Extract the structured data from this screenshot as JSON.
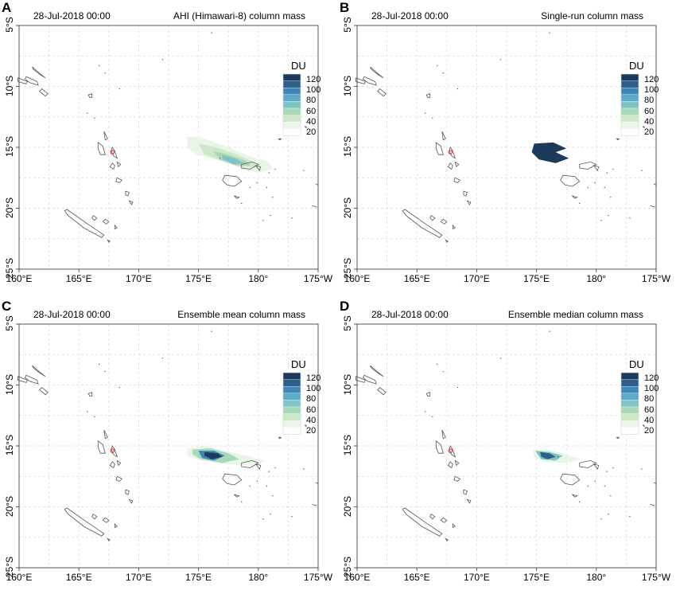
{
  "colorbar": {
    "unit": "DU",
    "ticks": [
      "120",
      "100",
      "80",
      "60",
      "40",
      "20"
    ],
    "colors": [
      "#1b3a5c",
      "#2e5f8a",
      "#3d86b5",
      "#5aaac8",
      "#7fc4c4",
      "#a7d8b8",
      "#cde9c7",
      "#e9f5e6",
      "#ffffff"
    ]
  },
  "map": {
    "x_ticks": [
      "160°E",
      "165°E",
      "170°E",
      "175°E",
      "180°",
      "175°W"
    ],
    "y_ticks": [
      "5°S",
      "10°S",
      "15°S",
      "20°S",
      "25°S"
    ],
    "land_color": "#555555",
    "volcano_marker_color": "#e03030",
    "lon_range": [
      160,
      185
    ],
    "lat_range": [
      -25,
      -5
    ]
  },
  "panels": [
    {
      "letter": "A",
      "time": "28-Jul-2018 00:00",
      "title": "AHI (Himawari-8) column mass",
      "plume": "observed"
    },
    {
      "letter": "B",
      "time": "28-Jul-2018 00:00",
      "title": "Single-run column mass",
      "plume": "single"
    },
    {
      "letter": "C",
      "time": "28-Jul-2018 00:00",
      "title": "Ensemble mean column mass",
      "plume": "mean"
    },
    {
      "letter": "D",
      "time": "28-Jul-2018 00:00",
      "title": "Ensemble median column mass",
      "plume": "median"
    }
  ]
}
